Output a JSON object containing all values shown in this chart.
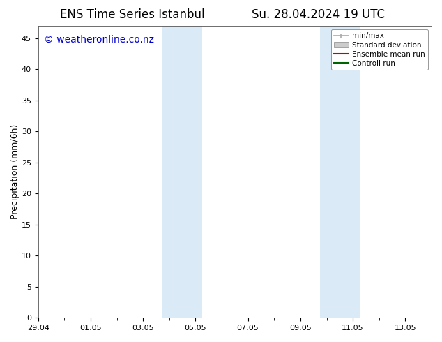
{
  "title_left": "ENS Time Series Istanbul",
  "title_right": "Su. 28.04.2024 19 UTC",
  "ylabel": "Precipitation (mm/6h)",
  "watermark": "© weatheronline.co.nz",
  "watermark_color": "#0000cc",
  "background_color": "#ffffff",
  "plot_bg_color": "#ffffff",
  "ylim": [
    0,
    47
  ],
  "yticks": [
    0,
    5,
    10,
    15,
    20,
    25,
    30,
    35,
    40,
    45
  ],
  "total_days": 15,
  "xtick_labels": [
    "29.04",
    "01.05",
    "03.05",
    "05.05",
    "07.05",
    "09.05",
    "11.05",
    "13.05"
  ],
  "xtick_positions_days": [
    0,
    2,
    4,
    6,
    8,
    10,
    12,
    14
  ],
  "shaded_regions": [
    {
      "start_day": 4.75,
      "end_day": 6.25,
      "color": "#daeaf7"
    },
    {
      "start_day": 10.75,
      "end_day": 12.25,
      "color": "#daeaf7"
    }
  ],
  "legend_items": [
    {
      "label": "min/max",
      "color": "#aaaaaa",
      "type": "errbar"
    },
    {
      "label": "Standard deviation",
      "color": "#cccccc",
      "type": "filled_box"
    },
    {
      "label": "Ensemble mean run",
      "color": "#cc0000",
      "type": "line"
    },
    {
      "label": "Controll run",
      "color": "#006400",
      "type": "line"
    }
  ],
  "title_fontsize": 12,
  "axis_label_fontsize": 9,
  "tick_fontsize": 8,
  "legend_fontsize": 7.5,
  "watermark_fontsize": 10
}
